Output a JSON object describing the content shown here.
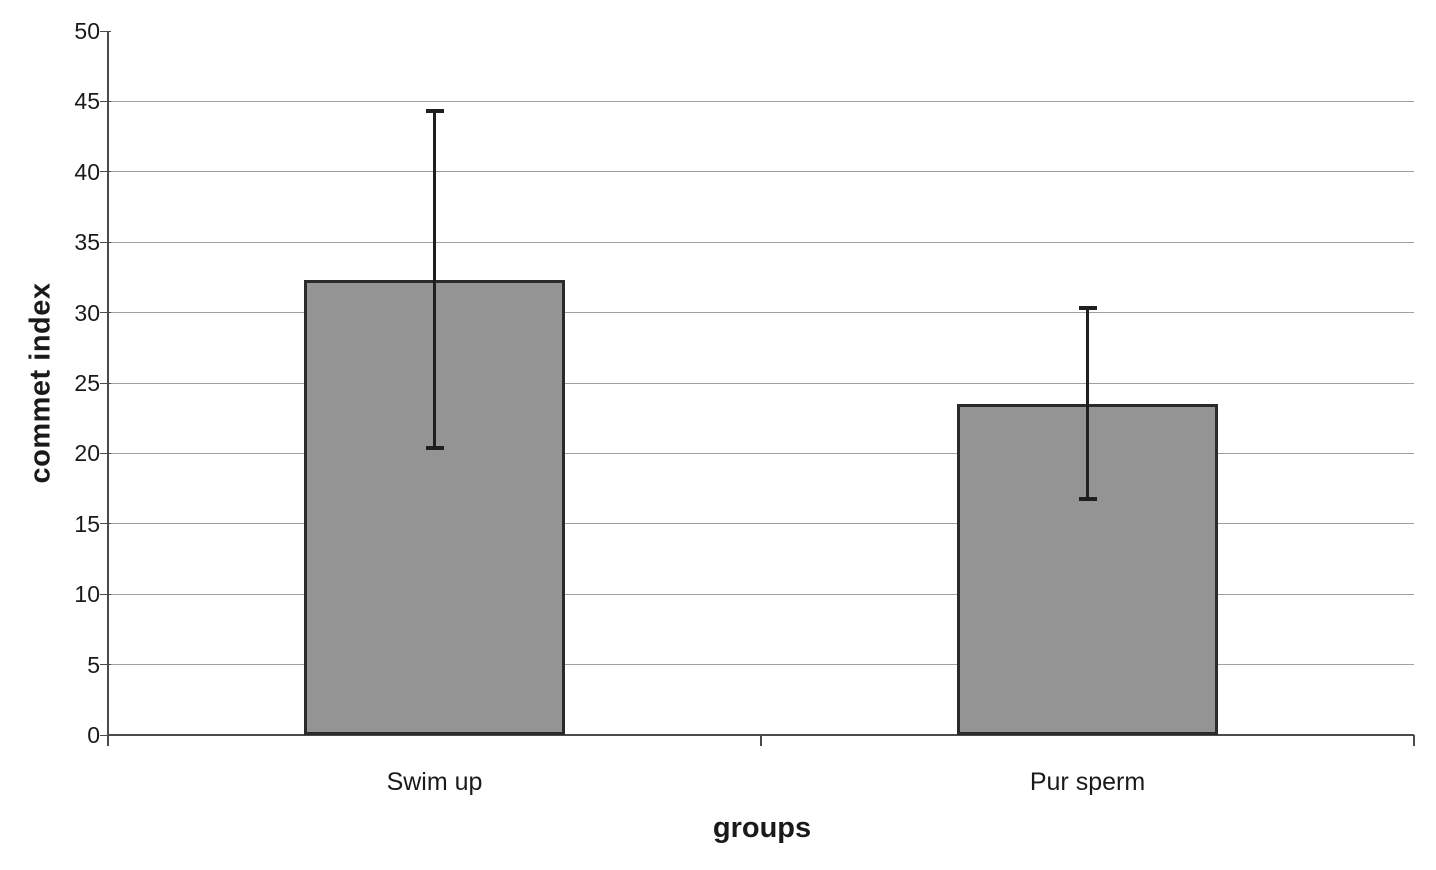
{
  "chart_data": {
    "type": "bar",
    "title": "",
    "xlabel": "groups",
    "ylabel": "commet index",
    "categories": [
      "Swim up",
      "Pur sperm"
    ],
    "values": [
      32.3,
      23.5
    ],
    "error_bars": {
      "upper": [
        44.4,
        30.4
      ],
      "lower": [
        20.3,
        16.7
      ]
    },
    "ylim": [
      0,
      50
    ],
    "yticks": [
      0,
      5,
      10,
      15,
      20,
      25,
      30,
      35,
      40,
      45,
      50
    ],
    "grid": "horizontal-major",
    "legend": "none",
    "colors": {
      "bar_fill": "#949494",
      "bar_border": "#2a2a2a",
      "error_bar": "#1f1f1f",
      "gridline": "#a59c9c",
      "axis": "#4a4a4a",
      "text": "#1a1a1a",
      "background": "#ffffff"
    }
  }
}
